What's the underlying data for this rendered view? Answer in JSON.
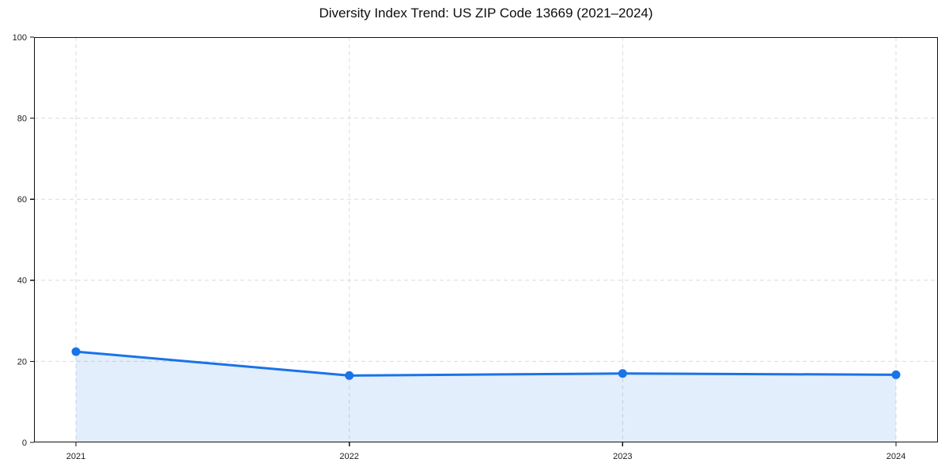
{
  "figure": {
    "title": "Diversity Index Trend: US ZIP Code 13669 (2021–2024)",
    "background_color": "#ffffff"
  },
  "chart_data": {
    "type": "line",
    "title": "Diversity Index Trend: US ZIP Code 13669 (2021–2024)",
    "x": [
      "2021",
      "2022",
      "2023",
      "2024"
    ],
    "series": [
      {
        "name": "Diversity Index",
        "values": [
          22.4,
          16.5,
          17.0,
          16.7
        ]
      }
    ],
    "xlabel": "",
    "ylabel": "",
    "ylim": [
      0,
      100
    ],
    "yticks": [
      0,
      20,
      40,
      60,
      80,
      100
    ],
    "grid": true,
    "grid_style": "dashed",
    "legend_position": "none",
    "area_fill": true,
    "colors": {
      "line": "#1a73e8",
      "marker": "#1a73e8",
      "area_fill": "rgba(26,115,232,0.12)",
      "grid": "#dcdcdc",
      "spine": "#111111",
      "tick_label": "#1c1c1c"
    },
    "style": {
      "line_width": 3,
      "marker_radius": 5.5,
      "tick_length": 5
    }
  }
}
